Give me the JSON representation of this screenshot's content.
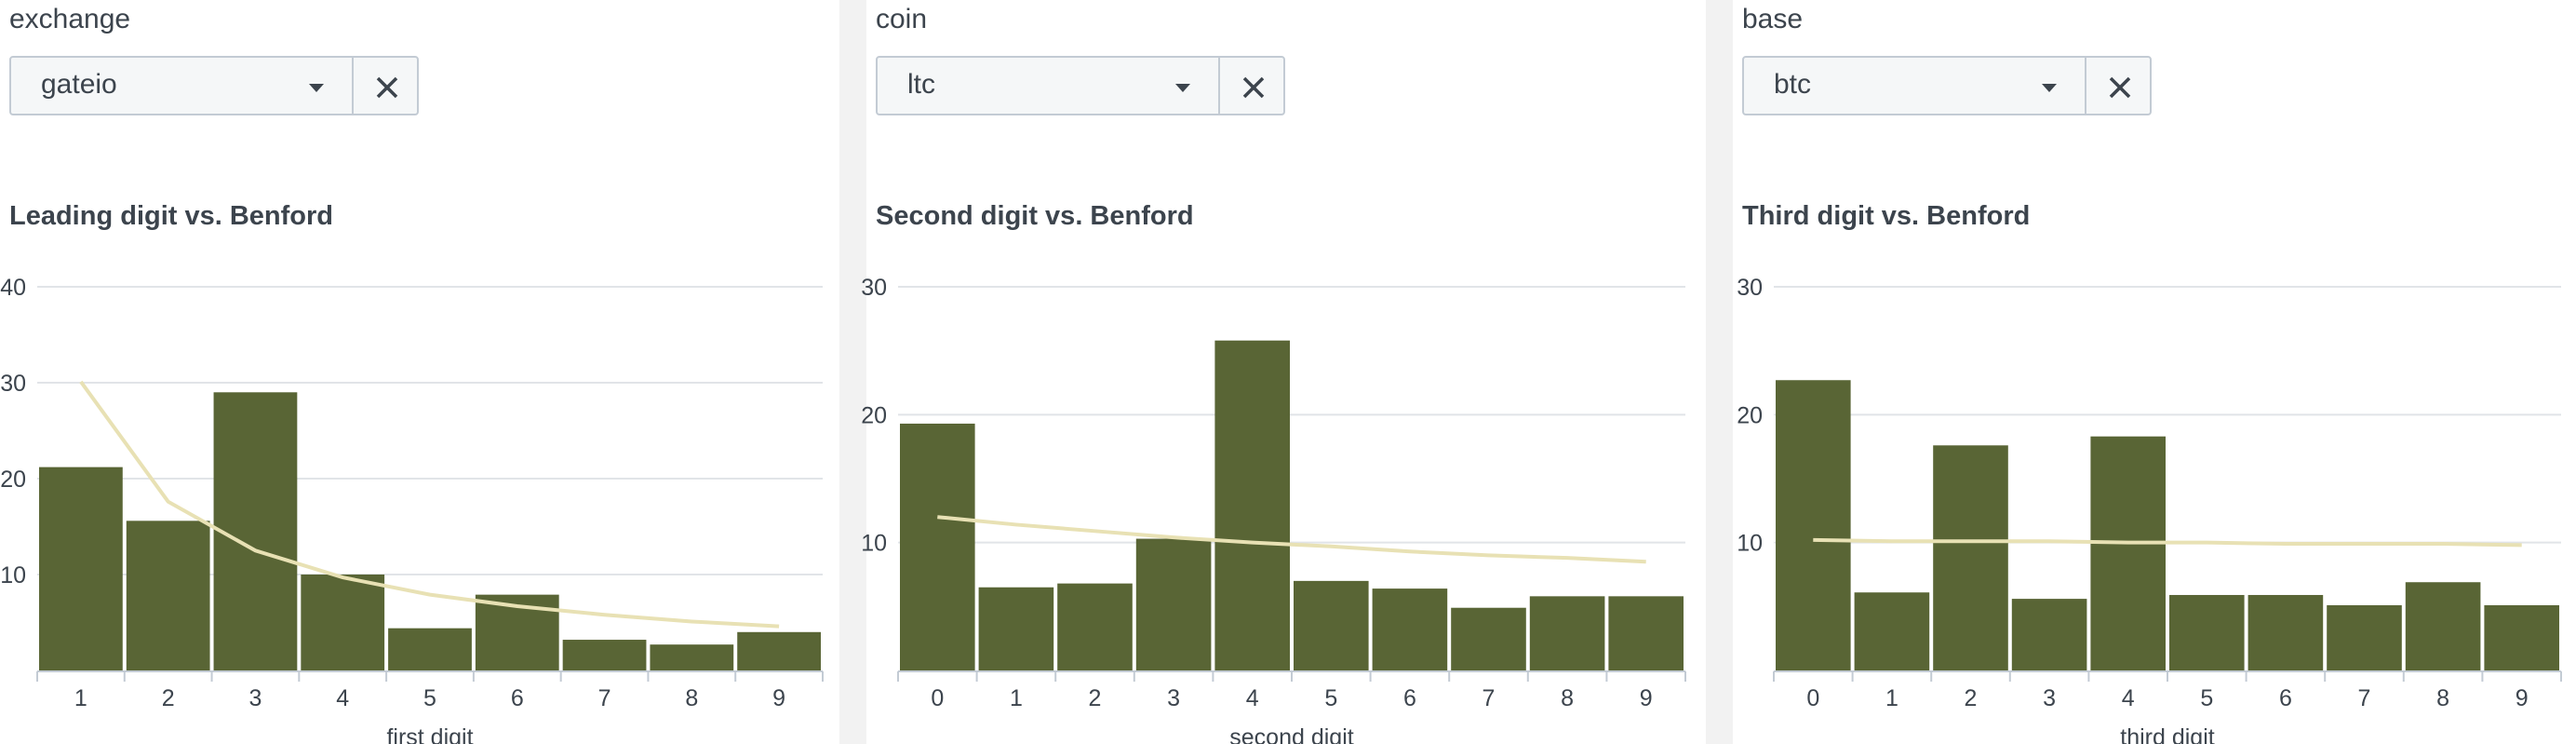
{
  "panels": [
    {
      "field_label": "exchange",
      "select_value": "gateio",
      "chart_title": "Leading digit vs. Benford"
    },
    {
      "field_label": "coin",
      "select_value": "ltc",
      "chart_title": "Second digit vs. Benford"
    },
    {
      "field_label": "base",
      "select_value": "btc",
      "chart_title": "Third digit vs. Benford"
    }
  ],
  "colors": {
    "bar": "#596535",
    "line": "#e8e1b4",
    "grid": "#e1e4e8",
    "axis": "#c3cbd4"
  },
  "chart_data": [
    {
      "type": "bar",
      "title": "Leading digit vs. Benford",
      "xlabel": "first digit",
      "ylabel": "",
      "ylim": [
        0,
        40
      ],
      "yticks": [
        10,
        20,
        30,
        40
      ],
      "categories": [
        "1",
        "2",
        "3",
        "4",
        "5",
        "6",
        "7",
        "8",
        "9"
      ],
      "series": [
        {
          "kind": "bar",
          "values": [
            21.2,
            15.6,
            29.0,
            10.0,
            4.4,
            7.9,
            3.2,
            2.7,
            4.0
          ]
        },
        {
          "kind": "line",
          "values": [
            30.1,
            17.6,
            12.5,
            9.7,
            7.9,
            6.7,
            5.8,
            5.1,
            4.6
          ]
        }
      ],
      "grid": true
    },
    {
      "type": "bar",
      "title": "Second digit vs. Benford",
      "xlabel": "second digit",
      "ylabel": "",
      "ylim": [
        0,
        30
      ],
      "yticks": [
        10,
        20,
        30
      ],
      "categories": [
        "0",
        "1",
        "2",
        "3",
        "4",
        "5",
        "6",
        "7",
        "8",
        "9"
      ],
      "series": [
        {
          "kind": "bar",
          "values": [
            19.3,
            6.5,
            6.8,
            10.3,
            25.8,
            7.0,
            6.4,
            4.9,
            5.8,
            5.8
          ]
        },
        {
          "kind": "line",
          "values": [
            12.0,
            11.4,
            10.9,
            10.4,
            10.0,
            9.7,
            9.3,
            9.0,
            8.8,
            8.5
          ]
        }
      ],
      "grid": true
    },
    {
      "type": "bar",
      "title": "Third digit vs. Benford",
      "xlabel": "third digit",
      "ylabel": "",
      "ylim": [
        0,
        30
      ],
      "yticks": [
        10,
        20,
        30
      ],
      "categories": [
        "0",
        "1",
        "2",
        "3",
        "4",
        "5",
        "6",
        "7",
        "8",
        "9"
      ],
      "series": [
        {
          "kind": "bar",
          "values": [
            22.7,
            6.1,
            17.6,
            5.6,
            18.3,
            5.9,
            5.9,
            5.1,
            6.9,
            5.1
          ]
        },
        {
          "kind": "line",
          "values": [
            10.2,
            10.1,
            10.1,
            10.1,
            10.0,
            10.0,
            9.9,
            9.9,
            9.9,
            9.8
          ]
        }
      ],
      "grid": true
    }
  ]
}
